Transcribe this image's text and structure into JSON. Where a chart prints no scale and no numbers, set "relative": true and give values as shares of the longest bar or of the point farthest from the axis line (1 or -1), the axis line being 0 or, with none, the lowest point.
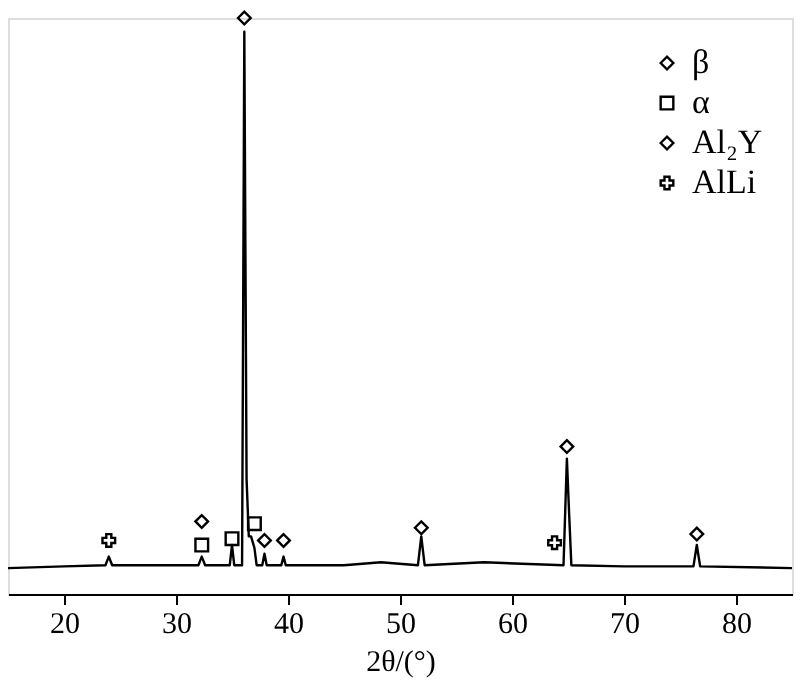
{
  "chart_data": {
    "type": "line",
    "xlabel": "2θ/(°)",
    "relative": true,
    "xlim": [
      15,
      85
    ],
    "xticks": [
      20,
      30,
      40,
      50,
      60,
      70,
      80
    ],
    "tick_labels": "x",
    "grid": false,
    "legend": "top right",
    "x": [
      15,
      20,
      23.7,
      24.0,
      24.3,
      28,
      32.0,
      32.3,
      32.6,
      34.8,
      35.0,
      35.2,
      35.9,
      36.1,
      36.3,
      36.5,
      36.7,
      37.0,
      37.2,
      37.7,
      37.9,
      38.1,
      39.4,
      39.6,
      39.8,
      45,
      48.3,
      51.6,
      51.9,
      52.2,
      57.5,
      64.6,
      64.9,
      65.1,
      65.3,
      70,
      76.2,
      76.5,
      76.8,
      85
    ],
    "series": [
      {
        "color": "#000000",
        "marker": "none",
        "line_style": "solid",
        "values": [
          0.045,
          0.048,
          0.05,
          0.065,
          0.05,
          0.05,
          0.05,
          0.065,
          0.05,
          0.05,
          0.085,
          0.05,
          0.05,
          0.976,
          0.2,
          0.1,
          0.1,
          0.08,
          0.05,
          0.05,
          0.07,
          0.05,
          0.05,
          0.065,
          0.05,
          0.05,
          0.055,
          0.05,
          0.1,
          0.05,
          0.055,
          0.05,
          0.235,
          0.14,
          0.05,
          0.048,
          0.048,
          0.085,
          0.048,
          0.045
        ]
      },
      {
        "type": "scatter",
        "name": "β",
        "color": "#000000",
        "marker": "diamond",
        "x": [
          36.1,
          51.9,
          64.9,
          76.5
        ],
        "values": [
          1.0,
          0.115,
          0.256,
          0.104
        ]
      },
      {
        "type": "scatter",
        "name": "α",
        "color": "#000000",
        "marker": "square",
        "x": [
          32.3,
          35.0,
          37.0
        ],
        "values": [
          0.085,
          0.096,
          0.122
        ]
      },
      {
        "type": "scatter",
        "name": "Al₂Y",
        "color": "#000000",
        "marker": "diamond",
        "x": [
          32.3,
          37.9,
          39.6
        ],
        "values": [
          0.126,
          0.093,
          0.093
        ]
      },
      {
        "type": "scatter",
        "name": "AlLi",
        "color": "#000000",
        "marker": "cross",
        "x": [
          24.0,
          63.8
        ],
        "values": [
          0.093,
          0.089
        ]
      }
    ]
  }
}
